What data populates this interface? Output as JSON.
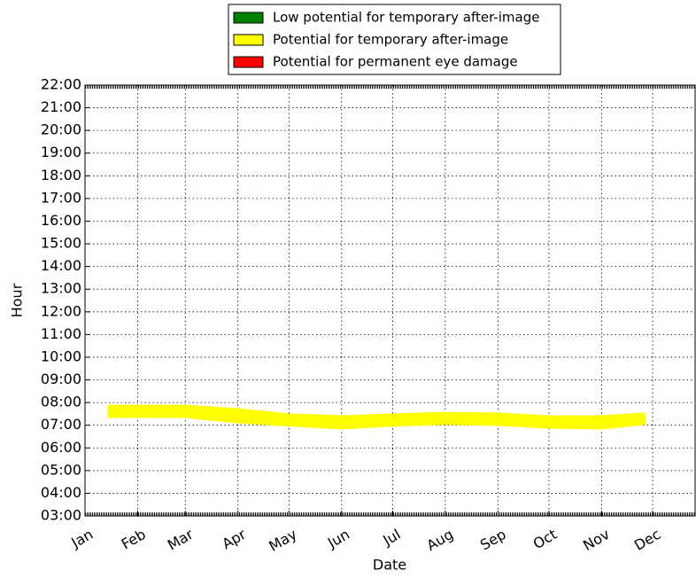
{
  "chart_data": {
    "type": "band",
    "xlabel": "Date",
    "ylabel": "Hour",
    "xlim": [
      0,
      359
    ],
    "xticks": [
      {
        "value": 0,
        "label": "Jan"
      },
      {
        "value": 31,
        "label": "Feb"
      },
      {
        "value": 59,
        "label": "Mar"
      },
      {
        "value": 90,
        "label": "Apr"
      },
      {
        "value": 120,
        "label": "May"
      },
      {
        "value": 151,
        "label": "Jun"
      },
      {
        "value": 181,
        "label": "Jul"
      },
      {
        "value": 212,
        "label": "Aug"
      },
      {
        "value": 243,
        "label": "Sep"
      },
      {
        "value": 273,
        "label": "Oct"
      },
      {
        "value": 304,
        "label": "Nov"
      },
      {
        "value": 334,
        "label": "Dec"
      }
    ],
    "ylim": [
      3,
      22
    ],
    "yticks": [
      {
        "value": 3,
        "label": "03:00"
      },
      {
        "value": 4,
        "label": "04:00"
      },
      {
        "value": 5,
        "label": "05:00"
      },
      {
        "value": 6,
        "label": "06:00"
      },
      {
        "value": 7,
        "label": "07:00"
      },
      {
        "value": 8,
        "label": "08:00"
      },
      {
        "value": 9,
        "label": "09:00"
      },
      {
        "value": 10,
        "label": "10:00"
      },
      {
        "value": 11,
        "label": "11:00"
      },
      {
        "value": 12,
        "label": "12:00"
      },
      {
        "value": 13,
        "label": "13:00"
      },
      {
        "value": 14,
        "label": "14:00"
      },
      {
        "value": 15,
        "label": "15:00"
      },
      {
        "value": 16,
        "label": "16:00"
      },
      {
        "value": 17,
        "label": "17:00"
      },
      {
        "value": 18,
        "label": "18:00"
      },
      {
        "value": 19,
        "label": "19:00"
      },
      {
        "value": 20,
        "label": "20:00"
      },
      {
        "value": 21,
        "label": "21:00"
      },
      {
        "value": 22,
        "label": "22:00"
      }
    ],
    "grid": true,
    "series": [
      {
        "name": "Low potential for temporary after-image",
        "color": "#008000",
        "x": [],
        "low": [],
        "high": []
      },
      {
        "name": "Potential for temporary after-image",
        "color": "#ffff00",
        "x": [
          14,
          31,
          59,
          90,
          120,
          151,
          181,
          212,
          243,
          273,
          304,
          329
        ],
        "low": [
          7.38,
          7.38,
          7.38,
          7.14,
          7.0,
          6.87,
          7.0,
          7.07,
          7.03,
          6.91,
          6.87,
          7.07
        ],
        "high": [
          7.85,
          7.85,
          7.85,
          7.69,
          7.46,
          7.38,
          7.46,
          7.53,
          7.5,
          7.38,
          7.38,
          7.5
        ]
      },
      {
        "name": "Potential for permanent eye damage",
        "color": "#ff0000",
        "x": [],
        "low": [],
        "high": []
      }
    ]
  }
}
